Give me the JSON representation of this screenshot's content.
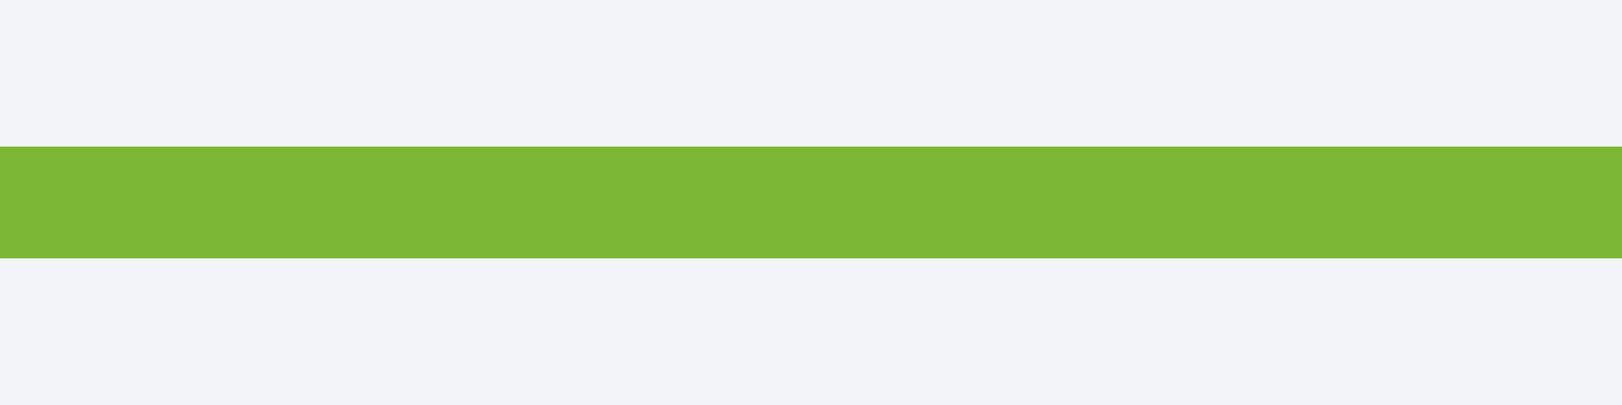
{
  "colors": {
    "background": "#f1f5f9",
    "band": "#7ab833"
  }
}
